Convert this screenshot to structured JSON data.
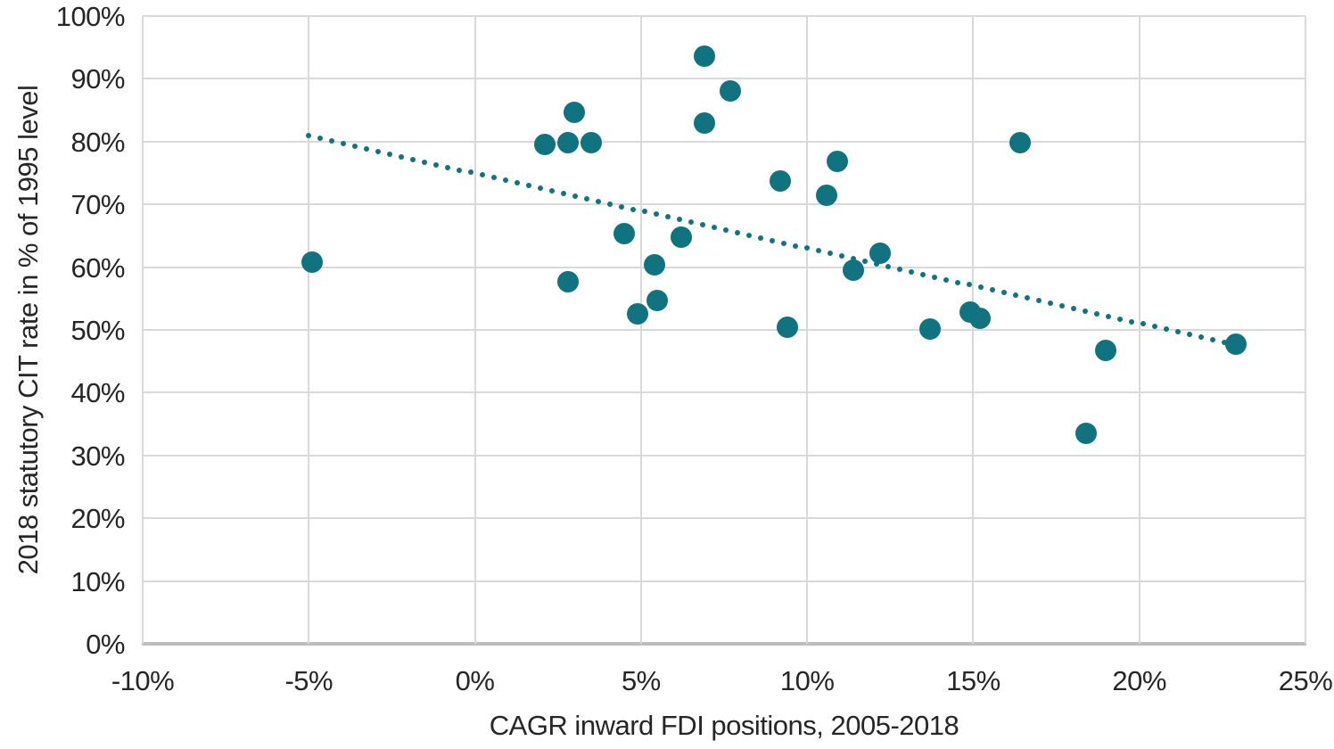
{
  "chart_data": {
    "type": "scatter",
    "title": "",
    "xlabel": "CAGR inward FDI positions, 2005-2018",
    "ylabel": "2018 statutory CIT rate in % of 1995 level",
    "xlim": [
      -10,
      25
    ],
    "ylim": [
      0,
      100
    ],
    "grid": true,
    "legend": false,
    "x_ticks": [
      -10,
      -5,
      0,
      5,
      10,
      15,
      20,
      25
    ],
    "x_tick_labels": [
      "-10%",
      "-5%",
      "0%",
      "5%",
      "10%",
      "15%",
      "20%",
      "25%"
    ],
    "y_ticks": [
      0,
      10,
      20,
      30,
      40,
      50,
      60,
      70,
      80,
      90,
      100
    ],
    "y_tick_labels": [
      "0%",
      "10%",
      "20%",
      "30%",
      "40%",
      "50%",
      "60%",
      "70%",
      "80%",
      "90%",
      "100%"
    ],
    "series": [
      {
        "name": "scatter-series",
        "marker_color": "#10737f",
        "points": [
          {
            "x": -4.9,
            "y": 60.8
          },
          {
            "x": 2.1,
            "y": 79.6
          },
          {
            "x": 2.8,
            "y": 79.8
          },
          {
            "x": 3.5,
            "y": 79.8
          },
          {
            "x": 3.0,
            "y": 84.7
          },
          {
            "x": 2.8,
            "y": 57.7
          },
          {
            "x": 4.5,
            "y": 65.3
          },
          {
            "x": 4.9,
            "y": 52.6
          },
          {
            "x": 5.4,
            "y": 60.3
          },
          {
            "x": 5.5,
            "y": 54.7
          },
          {
            "x": 6.2,
            "y": 64.8
          },
          {
            "x": 6.9,
            "y": 93.6
          },
          {
            "x": 6.9,
            "y": 83.0
          },
          {
            "x": 7.7,
            "y": 88.0
          },
          {
            "x": 9.2,
            "y": 73.7
          },
          {
            "x": 9.4,
            "y": 50.4
          },
          {
            "x": 10.6,
            "y": 71.4
          },
          {
            "x": 10.9,
            "y": 76.8
          },
          {
            "x": 11.4,
            "y": 59.5
          },
          {
            "x": 12.2,
            "y": 62.2
          },
          {
            "x": 13.7,
            "y": 50.1
          },
          {
            "x": 14.9,
            "y": 52.8
          },
          {
            "x": 15.2,
            "y": 51.8
          },
          {
            "x": 16.4,
            "y": 79.8
          },
          {
            "x": 18.4,
            "y": 33.5
          },
          {
            "x": 19.0,
            "y": 46.7
          },
          {
            "x": 22.9,
            "y": 47.7
          }
        ]
      }
    ],
    "trendline": {
      "style": "dotted",
      "color": "#10737f",
      "x1": -5.0,
      "y1": 80.9,
      "x2": 22.9,
      "y2": 47.6
    },
    "colors": {
      "marker": "#10737f",
      "gridline": "#d9d9d9",
      "axis_line": "#bdbdbd",
      "text": "#262626",
      "background": "#ffffff"
    }
  }
}
